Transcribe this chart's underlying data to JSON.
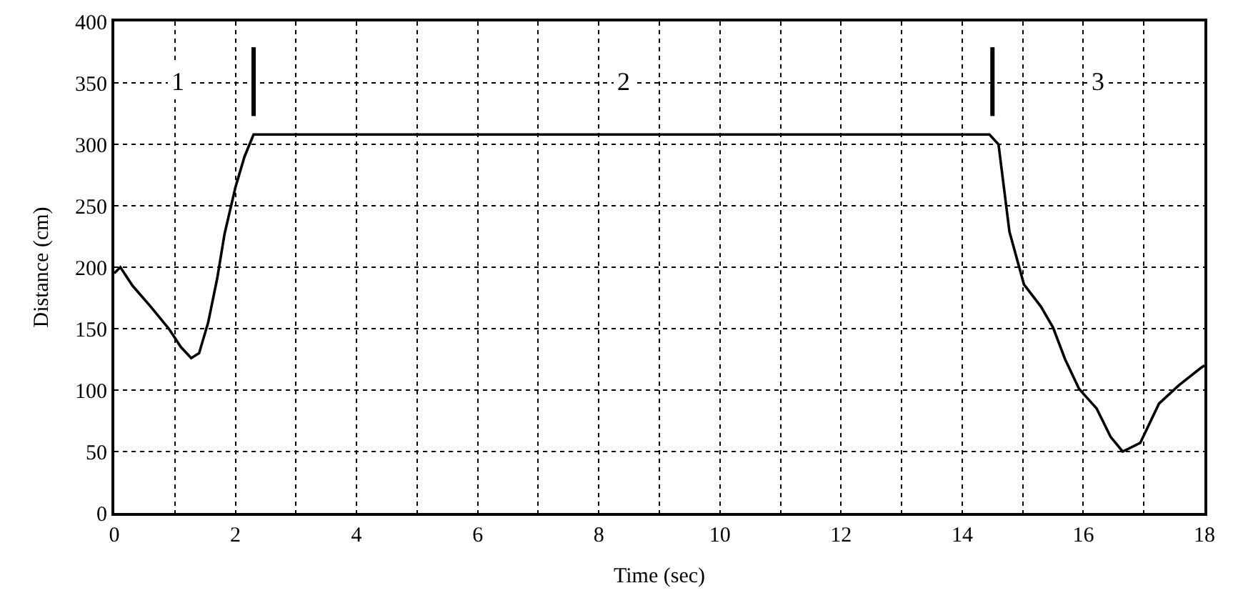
{
  "chart_data": {
    "type": "line",
    "xlabel": "Time (sec)",
    "ylabel": "Distance (cm)",
    "xlim": [
      0,
      18
    ],
    "ylim": [
      0,
      400
    ],
    "xticks": [
      0,
      {
        "value": 1,
        "label": null
      },
      2,
      {
        "value": 3,
        "label": null
      },
      4,
      {
        "value": 5,
        "label": null
      },
      6,
      {
        "value": 7,
        "label": null
      },
      8,
      {
        "value": 9,
        "label": null
      },
      10,
      {
        "value": 11,
        "label": null
      },
      12,
      {
        "value": 13,
        "label": null
      },
      14,
      {
        "value": 15,
        "label": null
      },
      16,
      {
        "value": 17,
        "label": null
      },
      18
    ],
    "yticks": [
      0,
      50,
      100,
      150,
      200,
      250,
      300,
      350,
      400
    ],
    "grid": true,
    "marker": "none",
    "line_style": "solid",
    "series": [
      {
        "color": "#000000",
        "x": [
          0,
          0.1,
          0.3,
          0.6,
          0.9,
          1.1,
          1.27,
          1.4,
          1.55,
          1.7,
          1.82,
          2.0,
          2.15,
          2.3,
          14.45,
          14.6,
          14.78,
          15.02,
          15.3,
          15.5,
          15.7,
          15.93,
          16.22,
          16.45,
          16.65,
          16.94,
          17.25,
          17.58,
          17.94,
          18
        ],
        "values": [
          195,
          200,
          185,
          168,
          150,
          135,
          126,
          130,
          155,
          191,
          227,
          265,
          290,
          308,
          308,
          300,
          229,
          186,
          168,
          151,
          125,
          101,
          85,
          62,
          50,
          57,
          89,
          104,
          118,
          120
        ]
      },
      {
        "color": "#000000",
        "x": [
          2.3,
          2.3,
          null,
          14.5,
          14.5
        ],
        "values": [
          323,
          379,
          null,
          323,
          379
        ]
      }
    ],
    "annotations": [
      "1",
      "2",
      "3"
    ]
  }
}
